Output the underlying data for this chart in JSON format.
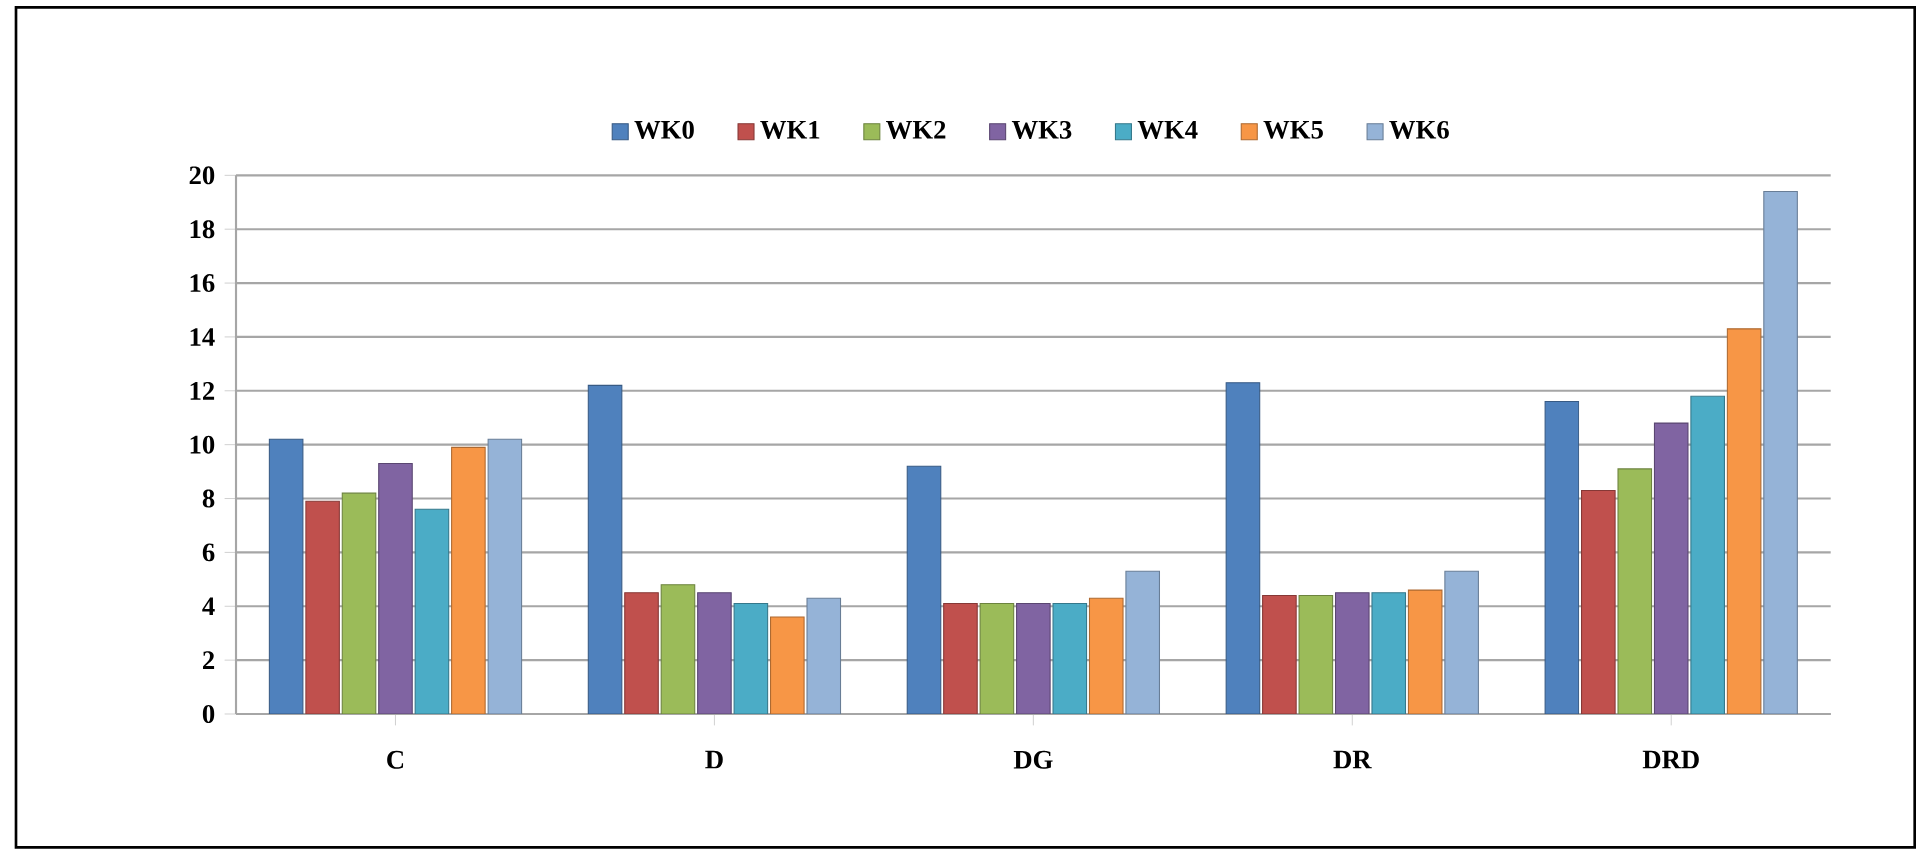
{
  "chart_data": {
    "type": "bar",
    "categories": [
      "C",
      "D",
      "DG",
      "DR",
      "DRD"
    ],
    "series": [
      {
        "name": "WK0",
        "color": "#4f81bd",
        "values": [
          10.2,
          12.2,
          9.2,
          12.3,
          11.6
        ]
      },
      {
        "name": "WK1",
        "color": "#c0504d",
        "values": [
          7.9,
          4.5,
          4.1,
          4.4,
          8.3
        ]
      },
      {
        "name": "WK2",
        "color": "#9bbb59",
        "values": [
          8.2,
          4.8,
          4.1,
          4.4,
          9.1
        ]
      },
      {
        "name": "WK3",
        "color": "#8064a2",
        "values": [
          9.3,
          4.5,
          4.1,
          4.5,
          10.8
        ]
      },
      {
        "name": "WK4",
        "color": "#4bacc6",
        "values": [
          7.6,
          4.1,
          4.1,
          4.5,
          11.8
        ]
      },
      {
        "name": "WK5",
        "color": "#f79646",
        "values": [
          9.9,
          3.6,
          4.3,
          4.6,
          14.3
        ]
      },
      {
        "name": "WK6",
        "color": "#95b3d7",
        "values": [
          10.2,
          4.3,
          5.3,
          5.3,
          19.4
        ]
      }
    ],
    "ylim": [
      0,
      20
    ],
    "yticks": [
      0,
      2,
      4,
      6,
      8,
      10,
      12,
      14,
      16,
      18,
      20
    ],
    "grid": "y",
    "legend": "top"
  }
}
